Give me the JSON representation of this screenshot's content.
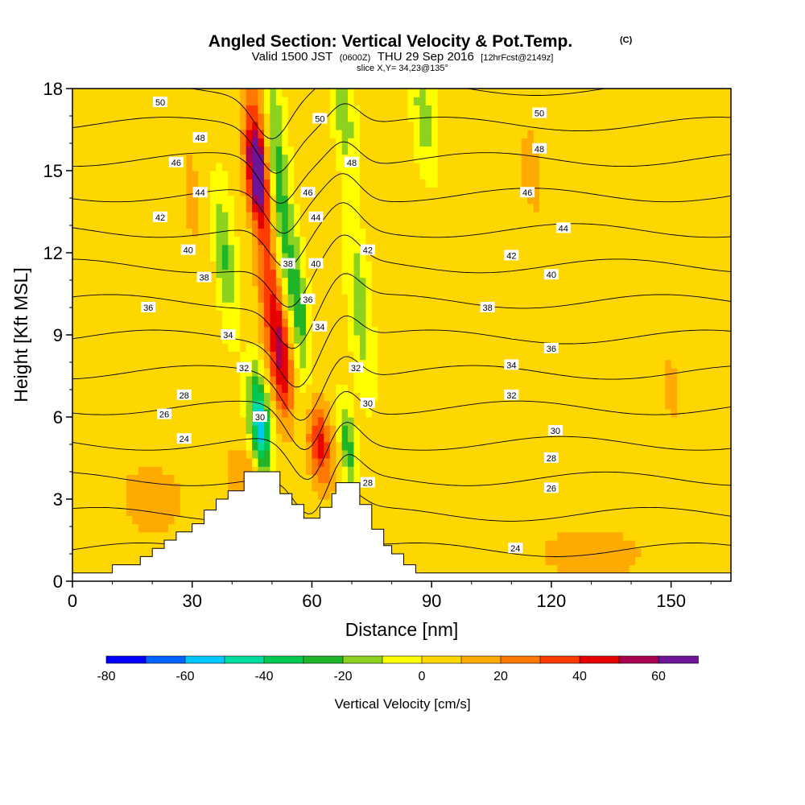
{
  "chart_data": {
    "type": "heatmap",
    "title": "Angled Section: Vertical Velocity & Pot.Temp.",
    "title_mark": "(C)",
    "subtitle_pre": "Valid 1500 JST",
    "subtitle_z": "(0600Z)",
    "subtitle_date": "THU 29 Sep 2016",
    "subtitle_fcst": "[12hrFcst@2149z]",
    "slice_label": "slice X,Y= 34,23@135°",
    "xlabel": "Distance [nm]",
    "ylabel": "Height [Kft MSL]",
    "xlim": [
      0,
      165
    ],
    "ylim": [
      0,
      18
    ],
    "x_ticks": [
      "0",
      "30",
      "60",
      "90",
      "120",
      "150"
    ],
    "x_tick_values": [
      0,
      30,
      60,
      90,
      120,
      150
    ],
    "y_ticks": [
      "0",
      "3",
      "6",
      "9",
      "12",
      "15",
      "18"
    ],
    "y_tick_values": [
      0,
      3,
      6,
      9,
      12,
      15,
      18
    ],
    "colorbar": {
      "label": "Vertical Velocity [cm/s]",
      "ticks": [
        "-80",
        "-60",
        "-40",
        "-20",
        "0",
        "20",
        "40",
        "60"
      ],
      "tick_values": [
        -80,
        -60,
        -40,
        -20,
        0,
        20,
        40,
        60
      ],
      "min": -80,
      "max": 70,
      "step": 10,
      "colors": [
        "#0000ff",
        "#0064ff",
        "#00c8ff",
        "#00dca0",
        "#00c850",
        "#20b428",
        "#8cd21e",
        "#ffff00",
        "#ffd700",
        "#ffaa00",
        "#ff7800",
        "#ff3c00",
        "#e60000",
        "#aa0050",
        "#6e1496"
      ]
    },
    "terrain": [
      [
        0,
        0.3
      ],
      [
        10,
        0.3
      ],
      [
        10,
        0.6
      ],
      [
        17,
        0.6
      ],
      [
        17,
        0.9
      ],
      [
        20,
        0.9
      ],
      [
        20,
        1.2
      ],
      [
        23,
        1.2
      ],
      [
        23,
        1.5
      ],
      [
        26,
        1.5
      ],
      [
        26,
        1.8
      ],
      [
        30,
        1.8
      ],
      [
        30,
        2.1
      ],
      [
        33,
        2.1
      ],
      [
        33,
        2.6
      ],
      [
        36,
        2.6
      ],
      [
        36,
        3.0
      ],
      [
        39,
        3.0
      ],
      [
        39,
        3.3
      ],
      [
        43,
        3.3
      ],
      [
        43,
        4.0
      ],
      [
        52,
        4.0
      ],
      [
        52,
        3.2
      ],
      [
        55,
        3.2
      ],
      [
        55,
        2.8
      ],
      [
        58,
        2.8
      ],
      [
        58,
        2.3
      ],
      [
        62,
        2.3
      ],
      [
        62,
        2.7
      ],
      [
        65,
        2.7
      ],
      [
        65,
        3.2
      ],
      [
        66,
        3.2
      ],
      [
        66,
        3.6
      ],
      [
        72,
        3.6
      ],
      [
        72,
        2.8
      ],
      [
        75,
        2.8
      ],
      [
        75,
        1.9
      ],
      [
        78,
        1.9
      ],
      [
        78,
        1.3
      ],
      [
        80,
        1.3
      ],
      [
        80,
        1.0
      ],
      [
        83,
        1.0
      ],
      [
        83,
        0.6
      ],
      [
        86,
        0.6
      ],
      [
        86,
        0.3
      ],
      [
        165,
        0.3
      ]
    ],
    "velocity_features": [
      {
        "x": 46,
        "y": 17,
        "w": 20,
        "sx": 3,
        "sy": 4
      },
      {
        "x": 46,
        "y": 15,
        "w": 60,
        "sx": 2.5,
        "sy": 1.8
      },
      {
        "x": 50,
        "y": 10,
        "w": 35,
        "sx": 3,
        "sy": 3.5
      },
      {
        "x": 53,
        "y": 8,
        "w": 35,
        "sx": 2.5,
        "sy": 2
      },
      {
        "x": 62,
        "y": 5,
        "w": 40,
        "sx": 3,
        "sy": 1.5
      },
      {
        "x": 43,
        "y": 4,
        "w": 15,
        "sx": 5,
        "sy": 1
      },
      {
        "x": 52,
        "y": 14,
        "w": -30,
        "sx": 2.5,
        "sy": 5
      },
      {
        "x": 47,
        "y": 5.8,
        "w": -60,
        "sx": 2.5,
        "sy": 1.8
      },
      {
        "x": 57,
        "y": 10,
        "w": -25,
        "sx": 2,
        "sy": 2.5
      },
      {
        "x": 38,
        "y": 12,
        "w": -25,
        "sx": 2.5,
        "sy": 2.5
      },
      {
        "x": 69,
        "y": 5,
        "w": -30,
        "sx": 1.8,
        "sy": 1.5
      },
      {
        "x": 72,
        "y": 10,
        "w": -20,
        "sx": 2.5,
        "sy": 3
      },
      {
        "x": 68,
        "y": 17,
        "w": -20,
        "sx": 2.5,
        "sy": 2
      },
      {
        "x": 88,
        "y": 17,
        "w": -20,
        "sx": 2.5,
        "sy": 2
      },
      {
        "x": 20,
        "y": 3,
        "w": 10,
        "sx": 12,
        "sy": 2
      },
      {
        "x": 130,
        "y": 1,
        "w": 10,
        "sx": 20,
        "sy": 1.5
      },
      {
        "x": 30,
        "y": 14,
        "w": 8,
        "sx": 5,
        "sy": 4
      },
      {
        "x": 115,
        "y": 15,
        "w": 8,
        "sx": 6,
        "sy": 4
      },
      {
        "x": 150,
        "y": 7,
        "w": 8,
        "sx": 5,
        "sy": 3
      }
    ],
    "theta_contours": [
      {
        "label": "24",
        "labels_at": [
          [
            28,
            5.2
          ],
          [
            111,
            1.2
          ]
        ]
      },
      {
        "label": "26",
        "labels_at": [
          [
            23,
            6.1
          ],
          [
            120,
            3.4
          ]
        ]
      },
      {
        "label": "28",
        "labels_at": [
          [
            28,
            6.8
          ],
          [
            74,
            3.6
          ],
          [
            120,
            4.5
          ]
        ]
      },
      {
        "label": "30",
        "labels_at": [
          [
            47,
            6.0
          ],
          [
            74,
            6.5
          ],
          [
            121,
            5.5
          ]
        ]
      },
      {
        "label": "32",
        "labels_at": [
          [
            43,
            7.8
          ],
          [
            71,
            7.8
          ],
          [
            110,
            6.8
          ]
        ]
      },
      {
        "label": "34",
        "labels_at": [
          [
            39,
            9.0
          ],
          [
            62,
            9.3
          ],
          [
            110,
            7.9
          ]
        ]
      },
      {
        "label": "36",
        "labels_at": [
          [
            19,
            10.0
          ],
          [
            59,
            10.3
          ],
          [
            120,
            8.5
          ]
        ]
      },
      {
        "label": "38",
        "labels_at": [
          [
            33,
            11.1
          ],
          [
            54,
            11.6
          ],
          [
            104,
            10.0
          ]
        ]
      },
      {
        "label": "40",
        "labels_at": [
          [
            29,
            12.1
          ],
          [
            61,
            11.6
          ],
          [
            120,
            11.2
          ]
        ]
      },
      {
        "label": "42",
        "labels_at": [
          [
            22,
            13.3
          ],
          [
            74,
            12.1
          ],
          [
            110,
            11.9
          ]
        ]
      },
      {
        "label": "44",
        "labels_at": [
          [
            32,
            14.2
          ],
          [
            61,
            13.3
          ],
          [
            123,
            12.9
          ]
        ]
      },
      {
        "label": "46",
        "labels_at": [
          [
            26,
            15.3
          ],
          [
            59,
            14.2
          ],
          [
            114,
            14.2
          ]
        ]
      },
      {
        "label": "48",
        "labels_at": [
          [
            32,
            16.2
          ],
          [
            70,
            15.3
          ],
          [
            117,
            15.8
          ]
        ]
      },
      {
        "label": "50",
        "labels_at": [
          [
            22,
            17.5
          ],
          [
            62,
            16.9
          ],
          [
            117,
            17.1
          ]
        ]
      }
    ]
  }
}
